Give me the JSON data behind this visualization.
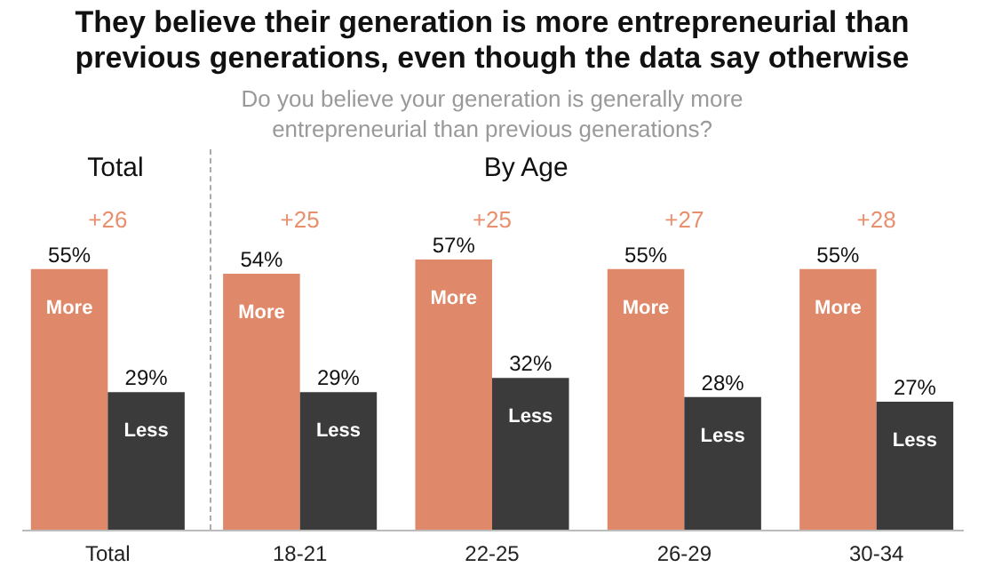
{
  "chart_data": {
    "type": "bar",
    "title": "They believe their generation is more entrepreneurial than previous generations, even though the data say otherwise",
    "subtitle": "Do you believe your generation is generally more entrepreneurial than previous generations?",
    "categories": [
      "Total",
      "18-21",
      "22-25",
      "26-29",
      "30-34"
    ],
    "series": [
      {
        "name": "More",
        "color": "#e0896a",
        "values": [
          55,
          54,
          57,
          55,
          55
        ],
        "value_labels": [
          "55%",
          "54%",
          "57%",
          "55%",
          "55%"
        ]
      },
      {
        "name": "Less",
        "color": "#3b3b3b",
        "values": [
          29,
          29,
          32,
          28,
          27
        ],
        "value_labels": [
          "29%",
          "29%",
          "32%",
          "28%",
          "27%"
        ]
      }
    ],
    "annotations": [
      "Total",
      "By Age",
      "+26",
      "+25",
      "+25",
      "+27",
      "+28"
    ],
    "legend": false,
    "grid": false
  }
}
